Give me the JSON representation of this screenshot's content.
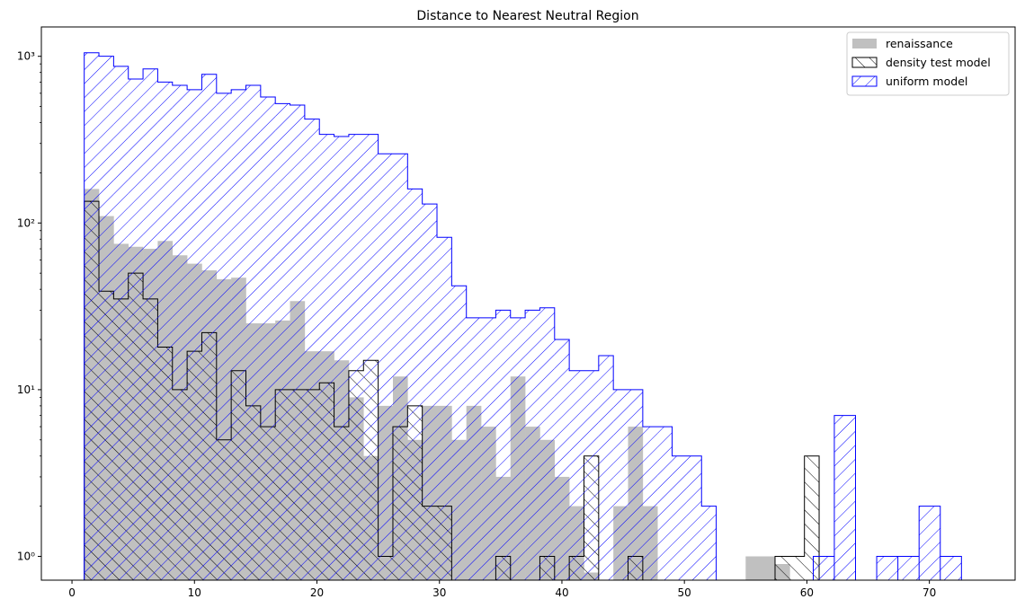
{
  "chart_data": {
    "type": "histogram",
    "title": "Distance to Nearest Neutral Region",
    "xlabel": "",
    "ylabel": "",
    "xlim": [
      -2.5,
      77
    ],
    "ylim": [
      0.72,
      1500
    ],
    "yscale": "log",
    "xticks": [
      0,
      10,
      20,
      30,
      40,
      50,
      60,
      70
    ],
    "xtick_labels": [
      "0",
      "10",
      "20",
      "30",
      "40",
      "50",
      "60",
      "70"
    ],
    "yticks": [
      1,
      10,
      100,
      1000
    ],
    "ytick_labels": [
      "10⁰",
      "10¹",
      "10²",
      "10³"
    ],
    "legend_position": "upper right",
    "bins": {
      "start": 1.0,
      "width": 1.2,
      "count": 60
    },
    "series": [
      {
        "name": "renaissance",
        "style": "filled",
        "color": "#c0c0c0",
        "counts": [
          160,
          110,
          75,
          72,
          70,
          78,
          64,
          57,
          52,
          46,
          47,
          25,
          25,
          26,
          34,
          17,
          17,
          15,
          9,
          4,
          8,
          12,
          5,
          8,
          8,
          5,
          8,
          6,
          3,
          12,
          6,
          5,
          3,
          2,
          0.8,
          0,
          2,
          6,
          2,
          0,
          0,
          0,
          0,
          0,
          0,
          1,
          1,
          0.9,
          0,
          0,
          0,
          0,
          0,
          0,
          0,
          0,
          0,
          0,
          0,
          0
        ]
      },
      {
        "name": "density test model",
        "style": "step-hatched",
        "color": "#000000",
        "hatch": "backslash",
        "counts": [
          135,
          39,
          35,
          50,
          35,
          18,
          10,
          17,
          22,
          5,
          13,
          8,
          6,
          10,
          10,
          10,
          11,
          6,
          13,
          15,
          1,
          6,
          8,
          2,
          2,
          0,
          0,
          0,
          1,
          0,
          0,
          1,
          0,
          1,
          4,
          0,
          0,
          1,
          0,
          0,
          0,
          0,
          0,
          0,
          0,
          0,
          0,
          1,
          1,
          4,
          0,
          0,
          0,
          0,
          0,
          0,
          0,
          0,
          0,
          0
        ]
      },
      {
        "name": "uniform model",
        "style": "step-hatched",
        "color": "#0000ff",
        "hatch": "slash",
        "counts": [
          1050,
          1000,
          870,
          730,
          840,
          700,
          670,
          630,
          780,
          600,
          630,
          670,
          570,
          520,
          510,
          420,
          340,
          330,
          340,
          340,
          260,
          260,
          160,
          130,
          82,
          42,
          27,
          27,
          30,
          27,
          30,
          31,
          20,
          13,
          13,
          16,
          10,
          10,
          6,
          6,
          4,
          4,
          2,
          0,
          0,
          0,
          0,
          0,
          0,
          0,
          0,
          0,
          0,
          0,
          0,
          0,
          0,
          0,
          0,
          0
        ]
      }
    ]
  },
  "extra_bins": {
    "uniform model": [
      {
        "x0": 60.52,
        "x1": 62.24,
        "count": 1
      },
      {
        "x0": 62.24,
        "x1": 63.97,
        "count": 7
      },
      {
        "x0": 65.7,
        "x1": 67.43,
        "count": 1
      },
      {
        "x0": 67.43,
        "x1": 69.16,
        "count": 1
      },
      {
        "x0": 69.16,
        "x1": 70.89,
        "count": 2
      },
      {
        "x0": 70.89,
        "x1": 72.62,
        "count": 1
      }
    ]
  }
}
